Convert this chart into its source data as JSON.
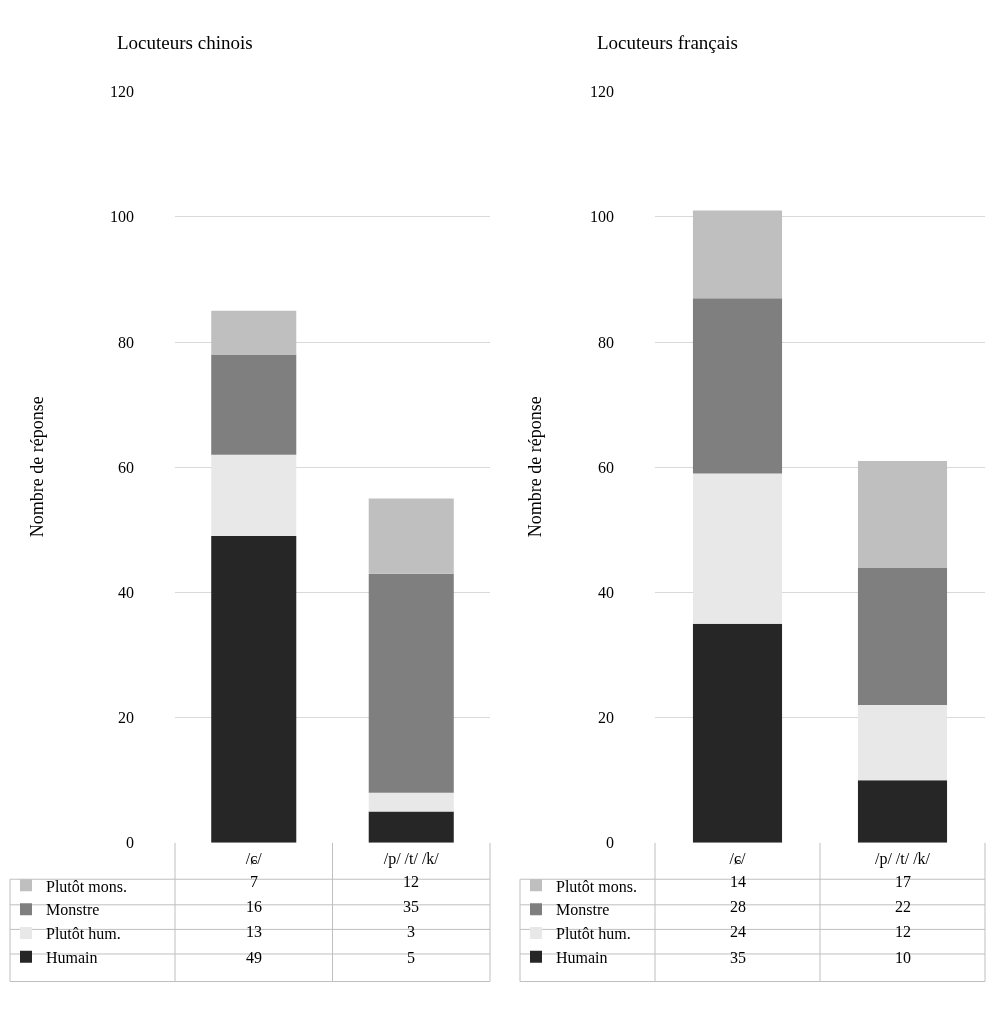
{
  "chart_data": [
    {
      "type": "bar",
      "stacked": true,
      "title": "Locuteurs chinois",
      "ylabel": "Nombre de réponse",
      "categories": [
        "/ɕ/",
        "/p/ /t/ /k/"
      ],
      "series": [
        {
          "name": "Humain",
          "color": "#262626",
          "values": [
            49,
            5
          ]
        },
        {
          "name": "Plutôt hum.",
          "color": "#e8e8e8",
          "values": [
            13,
            3
          ]
        },
        {
          "name": "Monstre",
          "color": "#7f7f7f",
          "values": [
            16,
            35
          ]
        },
        {
          "name": "Plutôt mons.",
          "color": "#bfbfbf",
          "values": [
            7,
            12
          ]
        }
      ],
      "ylim": [
        0,
        120
      ],
      "yticks": [
        0,
        20,
        40,
        60,
        80,
        100,
        120
      ],
      "grid": "y",
      "legend": "bottom",
      "data_labels": true
    },
    {
      "type": "bar",
      "stacked": true,
      "title": "Locuteurs français",
      "ylabel": "Nombre de réponse",
      "categories": [
        "/ɕ/",
        "/p/ /t/ /k/"
      ],
      "series": [
        {
          "name": "Humain",
          "color": "#262626",
          "values": [
            35,
            10
          ]
        },
        {
          "name": "Plutôt hum.",
          "color": "#e8e8e8",
          "values": [
            24,
            12
          ]
        },
        {
          "name": "Monstre",
          "color": "#7f7f7f",
          "values": [
            28,
            22
          ]
        },
        {
          "name": "Plutôt mons.",
          "color": "#bfbfbf",
          "values": [
            14,
            17
          ]
        }
      ],
      "ylim": [
        0,
        120
      ],
      "yticks": [
        0,
        20,
        40,
        60,
        80,
        100,
        120
      ],
      "grid": "y",
      "legend": "bottom",
      "data_labels": true
    }
  ]
}
